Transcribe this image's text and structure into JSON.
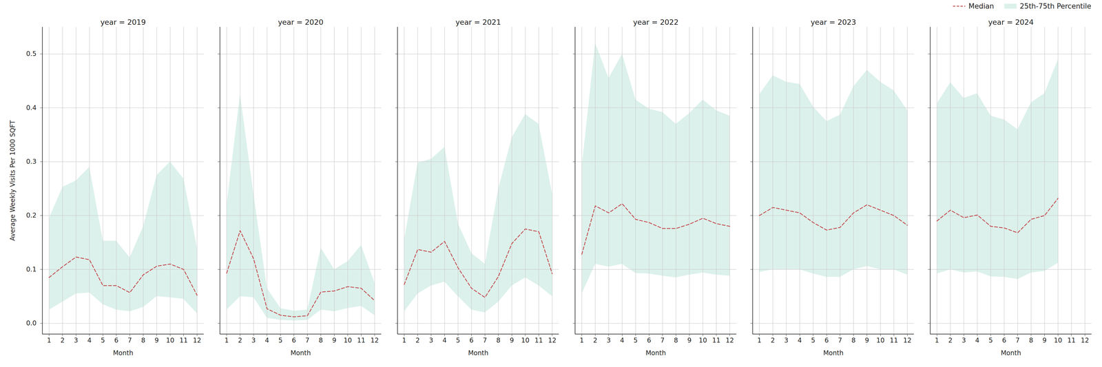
{
  "chart_data": [
    {
      "type": "line",
      "title": "year = 2019",
      "x_label": "Month",
      "y_label": "Average Weekly Visits Per 1000 SQFT",
      "x": [
        1,
        2,
        3,
        4,
        5,
        6,
        7,
        8,
        9,
        10,
        11,
        12
      ],
      "xlim": [
        0.5,
        12.5
      ],
      "xticks": [
        1,
        2,
        3,
        4,
        5,
        6,
        7,
        8,
        9,
        10,
        11,
        12
      ],
      "ylim": [
        -0.02,
        0.55
      ],
      "yticks": [
        {
          "value": 0,
          "label": "0.0"
        },
        0.1,
        0.2,
        0.3,
        0.4,
        0.5
      ],
      "grid": true,
      "series": [
        {
          "name": "25th-75th Percentile",
          "type": "area",
          "color": "#dcf1eb",
          "low": [
            0.025,
            0.04,
            0.055,
            0.057,
            0.035,
            0.025,
            0.022,
            0.03,
            0.05,
            0.048,
            0.045,
            0.018
          ],
          "high": [
            0.195,
            0.253,
            0.265,
            0.29,
            0.153,
            0.153,
            0.122,
            0.18,
            0.275,
            0.3,
            0.268,
            0.14
          ]
        },
        {
          "name": "Median",
          "type": "line",
          "line_style": "dashed",
          "color": "#c44e52",
          "values": [
            0.085,
            0.105,
            0.123,
            0.118,
            0.07,
            0.07,
            0.057,
            0.09,
            0.106,
            0.11,
            0.1,
            0.052
          ]
        }
      ]
    },
    {
      "type": "line",
      "title": "year = 2020",
      "x_label": "Month",
      "tick_labels": "x",
      "x": [
        1,
        2,
        3,
        4,
        5,
        6,
        7,
        8,
        9,
        10,
        11,
        12
      ],
      "xlim": [
        0.5,
        12.5
      ],
      "xticks": [
        1,
        2,
        3,
        4,
        5,
        6,
        7,
        8,
        9,
        10,
        11,
        12
      ],
      "ylim": [
        -0.02,
        0.55
      ],
      "yticks": [
        {
          "value": 0,
          "label": "0.0"
        },
        0.1,
        0.2,
        0.3,
        0.4,
        0.5
      ],
      "grid": true,
      "series": [
        {
          "name": "25th-75th Percentile",
          "type": "area",
          "color": "#dcf1eb",
          "low": [
            0.025,
            0.05,
            0.048,
            0.01,
            0.006,
            0.005,
            0.006,
            0.025,
            0.022,
            0.028,
            0.032,
            0.015
          ],
          "high": [
            0.22,
            0.425,
            0.24,
            0.065,
            0.028,
            0.023,
            0.025,
            0.14,
            0.1,
            0.115,
            0.145,
            0.075
          ]
        },
        {
          "name": "Median",
          "type": "line",
          "line_style": "dashed",
          "color": "#c44e52",
          "values": [
            0.093,
            0.172,
            0.12,
            0.027,
            0.015,
            0.012,
            0.014,
            0.058,
            0.06,
            0.068,
            0.065,
            0.042
          ]
        }
      ]
    },
    {
      "type": "line",
      "title": "year = 2021",
      "x_label": "Month",
      "tick_labels": "x",
      "x": [
        1,
        2,
        3,
        4,
        5,
        6,
        7,
        8,
        9,
        10,
        11,
        12
      ],
      "xlim": [
        0.5,
        12.5
      ],
      "xticks": [
        1,
        2,
        3,
        4,
        5,
        6,
        7,
        8,
        9,
        10,
        11,
        12
      ],
      "ylim": [
        -0.02,
        0.55
      ],
      "yticks": [
        {
          "value": 0,
          "label": "0.0"
        },
        0.1,
        0.2,
        0.3,
        0.4,
        0.5
      ],
      "grid": true,
      "series": [
        {
          "name": "25th-75th Percentile",
          "type": "area",
          "color": "#dcf1eb",
          "low": [
            0.022,
            0.055,
            0.07,
            0.077,
            0.05,
            0.025,
            0.02,
            0.04,
            0.07,
            0.085,
            0.07,
            0.05
          ],
          "high": [
            0.155,
            0.298,
            0.305,
            0.327,
            0.185,
            0.13,
            0.11,
            0.25,
            0.345,
            0.388,
            0.37,
            0.24
          ]
        },
        {
          "name": "Median",
          "type": "line",
          "line_style": "dashed",
          "color": "#c44e52",
          "values": [
            0.072,
            0.137,
            0.132,
            0.152,
            0.103,
            0.065,
            0.048,
            0.087,
            0.148,
            0.175,
            0.17,
            0.092
          ]
        }
      ]
    },
    {
      "type": "line",
      "title": "year = 2022",
      "x_label": "Month",
      "tick_labels": "x",
      "x": [
        1,
        2,
        3,
        4,
        5,
        6,
        7,
        8,
        9,
        10,
        11,
        12
      ],
      "xlim": [
        0.5,
        12.5
      ],
      "xticks": [
        1,
        2,
        3,
        4,
        5,
        6,
        7,
        8,
        9,
        10,
        11,
        12
      ],
      "ylim": [
        -0.02,
        0.55
      ],
      "yticks": [
        {
          "value": 0,
          "label": "0.0"
        },
        0.1,
        0.2,
        0.3,
        0.4,
        0.5
      ],
      "grid": true,
      "series": [
        {
          "name": "25th-75th Percentile",
          "type": "area",
          "color": "#dcf1eb",
          "low": [
            0.055,
            0.11,
            0.105,
            0.11,
            0.093,
            0.092,
            0.088,
            0.085,
            0.09,
            0.094,
            0.09,
            0.088
          ],
          "high": [
            0.29,
            0.52,
            0.455,
            0.5,
            0.415,
            0.398,
            0.392,
            0.37,
            0.39,
            0.415,
            0.395,
            0.385
          ]
        },
        {
          "name": "Median",
          "type": "line",
          "line_style": "dashed",
          "color": "#c44e52",
          "values": [
            0.128,
            0.218,
            0.205,
            0.222,
            0.193,
            0.187,
            0.176,
            0.176,
            0.184,
            0.195,
            0.185,
            0.18
          ]
        }
      ]
    },
    {
      "type": "line",
      "title": "year = 2023",
      "x_label": "Month",
      "tick_labels": "x",
      "x": [
        1,
        2,
        3,
        4,
        5,
        6,
        7,
        8,
        9,
        10,
        11,
        12
      ],
      "xlim": [
        0.5,
        12.5
      ],
      "xticks": [
        1,
        2,
        3,
        4,
        5,
        6,
        7,
        8,
        9,
        10,
        11,
        12
      ],
      "ylim": [
        -0.02,
        0.55
      ],
      "yticks": [
        {
          "value": 0,
          "label": "0.0"
        },
        0.1,
        0.2,
        0.3,
        0.4,
        0.5
      ],
      "grid": true,
      "series": [
        {
          "name": "25th-75th Percentile",
          "type": "area",
          "color": "#dcf1eb",
          "low": [
            0.095,
            0.1,
            0.1,
            0.1,
            0.092,
            0.086,
            0.086,
            0.1,
            0.106,
            0.1,
            0.1,
            0.09
          ],
          "high": [
            0.425,
            0.46,
            0.448,
            0.444,
            0.402,
            0.375,
            0.387,
            0.44,
            0.47,
            0.448,
            0.432,
            0.395
          ]
        },
        {
          "name": "Median",
          "type": "line",
          "line_style": "dashed",
          "color": "#c44e52",
          "values": [
            0.2,
            0.215,
            0.21,
            0.205,
            0.187,
            0.173,
            0.178,
            0.205,
            0.22,
            0.21,
            0.2,
            0.182
          ]
        }
      ]
    },
    {
      "type": "line",
      "title": "year = 2024",
      "x_label": "Month",
      "tick_labels": "x",
      "legend": "upper right",
      "x": [
        1,
        2,
        3,
        4,
        5,
        6,
        7,
        8,
        9,
        10,
        11,
        12
      ],
      "xlim": [
        0.5,
        12.5
      ],
      "xticks": [
        1,
        2,
        3,
        4,
        5,
        6,
        7,
        8,
        9,
        10,
        11,
        12
      ],
      "ylim": [
        -0.02,
        0.55
      ],
      "yticks": [
        {
          "value": 0,
          "label": "0.0"
        },
        0.1,
        0.2,
        0.3,
        0.4,
        0.5
      ],
      "grid": true,
      "series": [
        {
          "name": "25th-75th Percentile",
          "type": "area",
          "color": "#dcf1eb",
          "low": [
            0.092,
            0.1,
            0.094,
            0.096,
            0.087,
            0.086,
            0.082,
            0.094,
            0.097,
            0.112,
            null,
            null
          ],
          "high": [
            0.408,
            0.447,
            0.418,
            0.427,
            0.385,
            0.378,
            0.36,
            0.41,
            0.427,
            0.49,
            null,
            null
          ]
        },
        {
          "name": "Median",
          "type": "line",
          "line_style": "dashed",
          "color": "#c44e52",
          "values": [
            0.19,
            0.21,
            0.196,
            0.201,
            0.18,
            0.177,
            0.168,
            0.193,
            0.2,
            0.232,
            null,
            null
          ]
        }
      ]
    }
  ]
}
